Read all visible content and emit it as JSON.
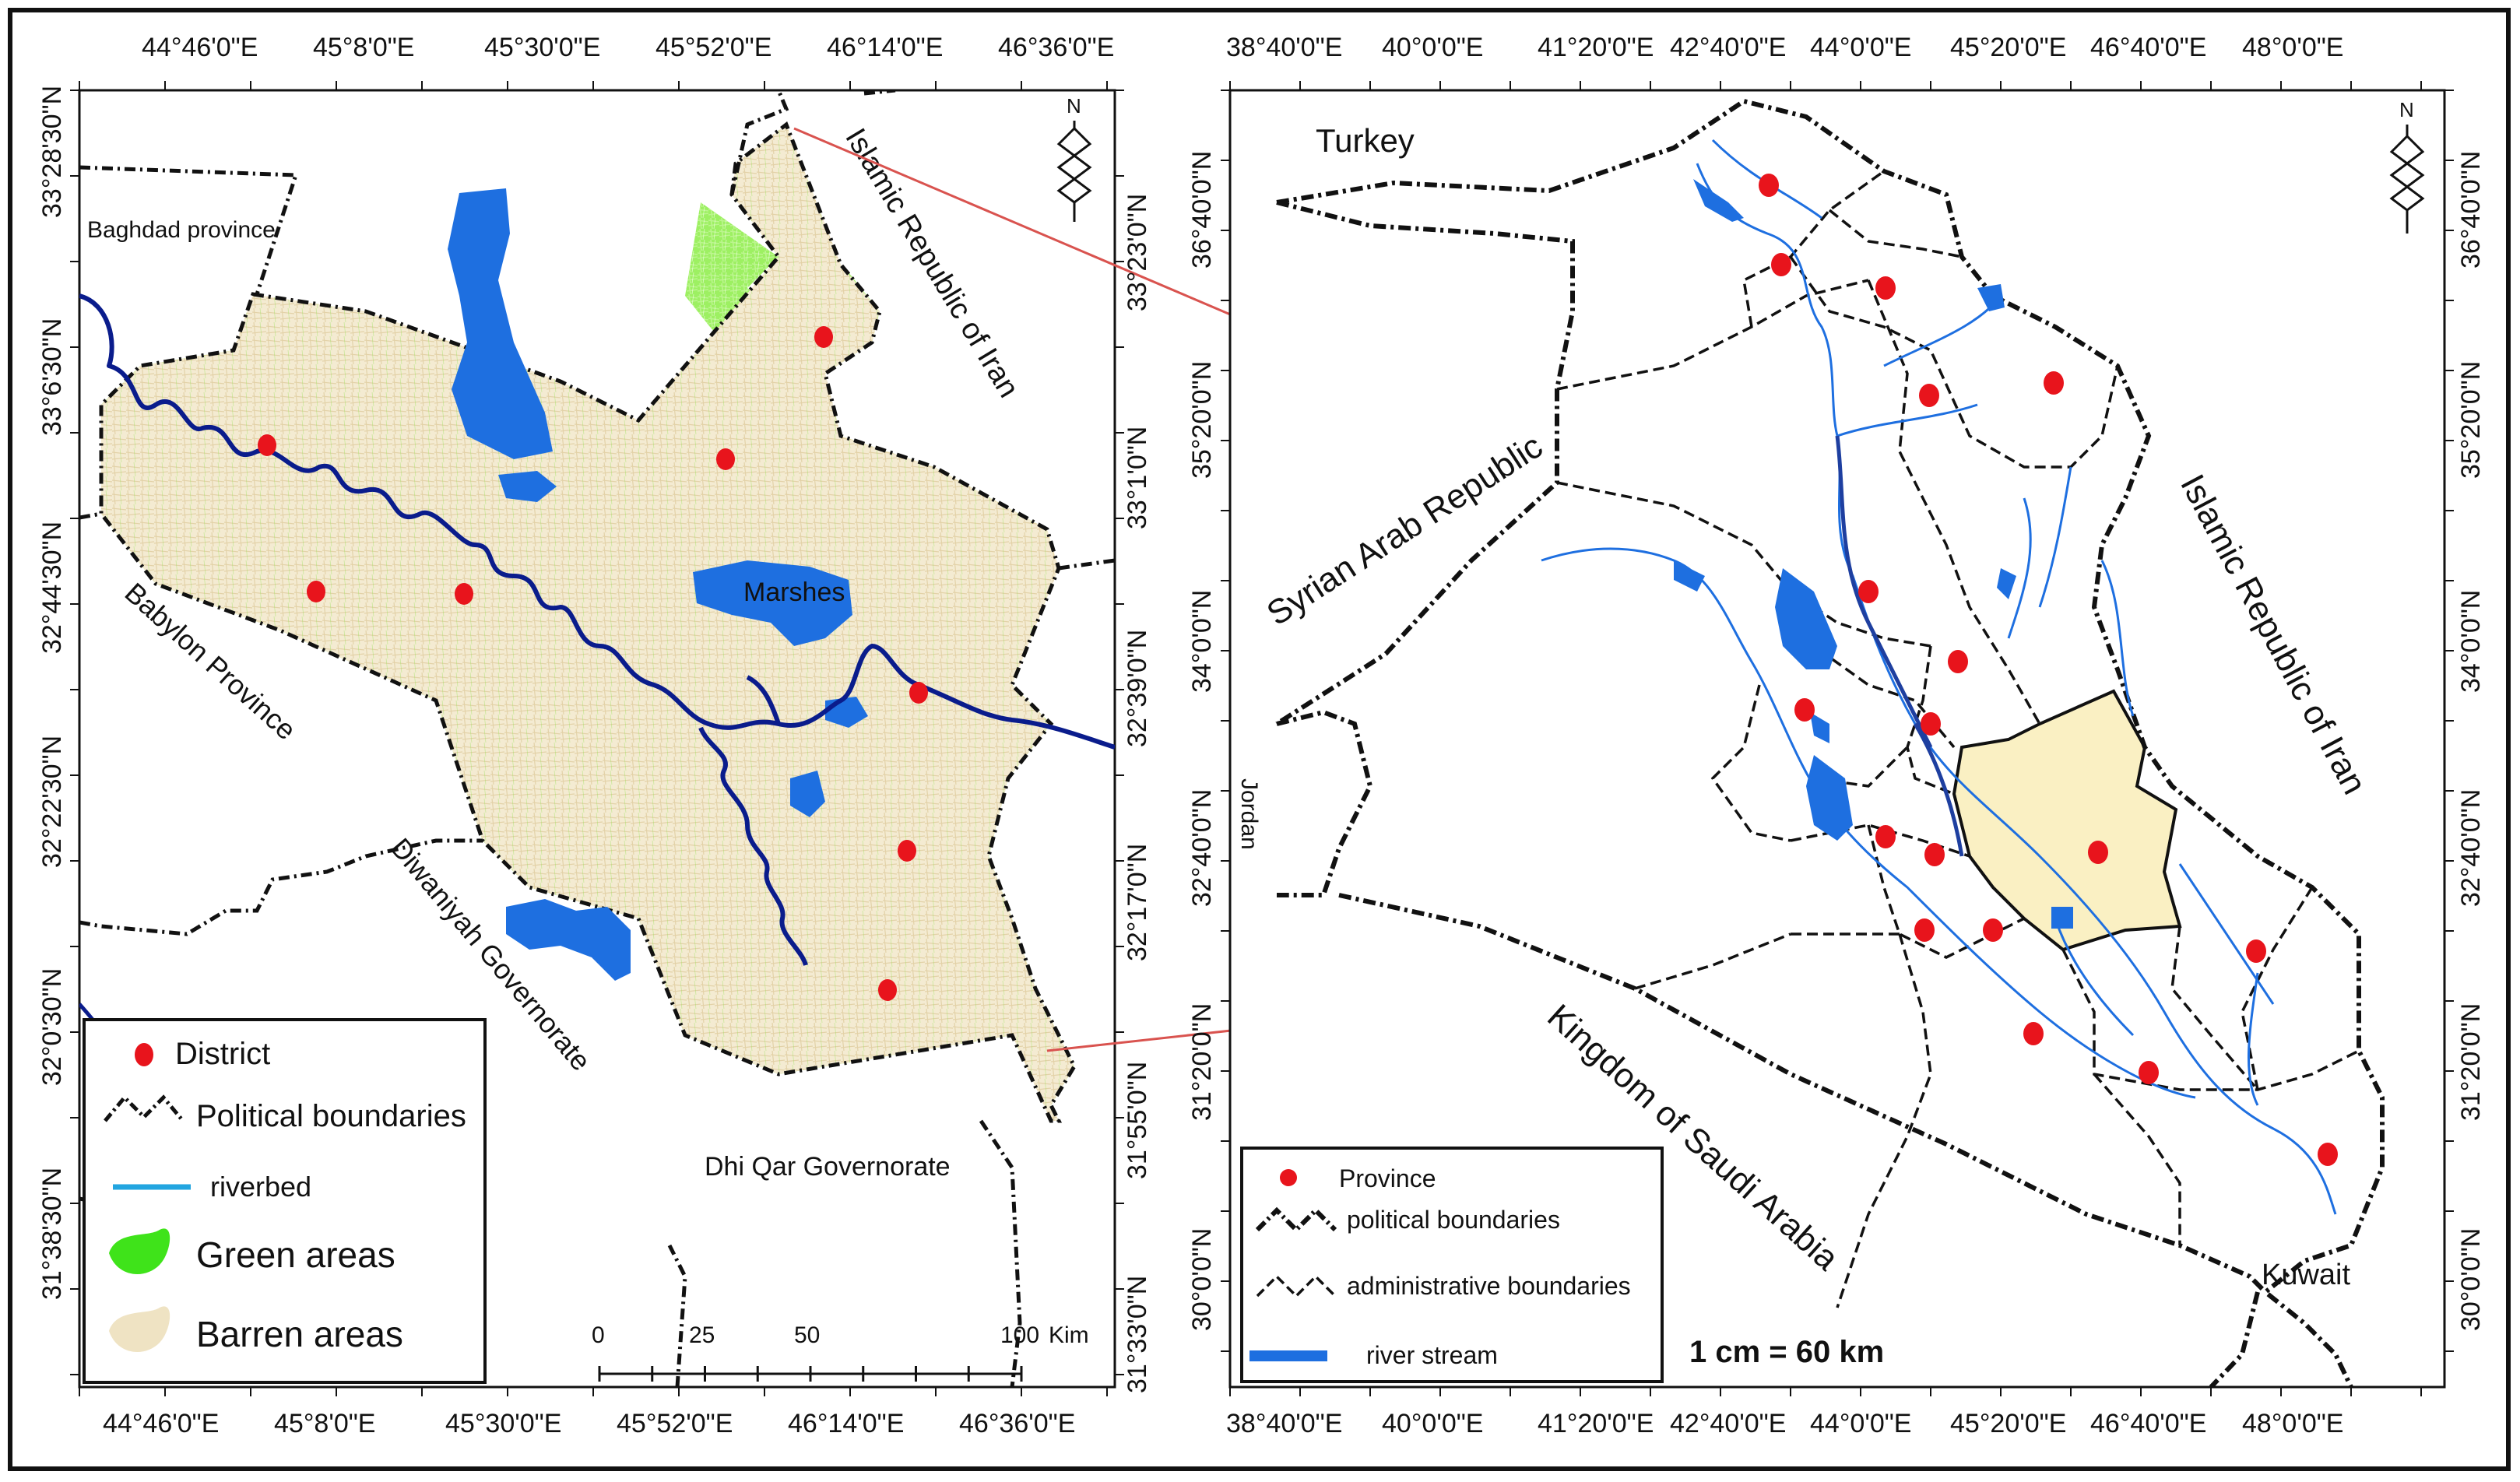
{
  "colors": {
    "green_areas": "#7CEB2E",
    "barren_areas": "#EFE3C3",
    "water": "#1E6FE0",
    "river_main": "#0A1C8C",
    "district_dot": "#E8141C",
    "study_area_fill": "#FAF0C3",
    "connector_line": "#D9534F",
    "boundary": "#111111"
  },
  "left_map": {
    "top_lon_labels": [
      "44°46'0\"E",
      "45°8'0\"E",
      "45°30'0\"E",
      "45°52'0\"E",
      "46°14'0\"E",
      "46°36'0\"E"
    ],
    "bottom_lon_labels": [
      "44°46'0\"E",
      "45°8'0\"E",
      "45°30'0\"E",
      "45°52'0\"E",
      "46°14'0\"E",
      "46°36'0\"E"
    ],
    "left_lat_labels": [
      "33°28'30\"N",
      "33°6'30\"N",
      "32°44'30\"N",
      "32°22'30\"N",
      "32°0'30\"N",
      "31°38'30\"N"
    ],
    "right_lat_labels": [
      "33°23'0\"N",
      "33°1'0\"N",
      "32°39'0\"N",
      "32°17'0\"N",
      "31°55'0\"N",
      "31°33'0\"N"
    ],
    "places": {
      "baghdad": "Baghdad province",
      "iran": "Islamic Republic of Iran",
      "babylon": "Babylon Province",
      "diwaniyah": "Diwaniyah Governorate",
      "dhiqar": "Dhi Qar Governorate",
      "marshes": "Marshes"
    },
    "north": "N",
    "scale": {
      "ticks": [
        "0",
        "25",
        "50",
        "100"
      ],
      "unit": "Kim"
    },
    "legend": {
      "district": "District",
      "political": "Political boundaries",
      "riverbed": "riverbed",
      "green": "Green areas",
      "barren": "Barren areas"
    }
  },
  "right_map": {
    "top_lon_labels": [
      "38°40'0\"E",
      "40°0'0\"E",
      "41°20'0\"E",
      "42°40'0\"E",
      "44°0'0\"E",
      "45°20'0\"E",
      "46°40'0\"E",
      "48°0'0\"E"
    ],
    "bottom_lon_labels": [
      "38°40'0\"E",
      "40°0'0\"E",
      "41°20'0\"E",
      "42°40'0\"E",
      "44°0'0\"E",
      "45°20'0\"E",
      "46°40'0\"E",
      "48°0'0\"E"
    ],
    "left_lat_labels": [
      "36°40'0\"N",
      "35°20'0\"N",
      "34°0'0\"N",
      "32°40'0\"N",
      "31°20'0\"N",
      "30°0'0\"N"
    ],
    "right_lat_labels": [
      "36°40'0\"N",
      "35°20'0\"N",
      "34°0'0\"N",
      "32°40'0\"N",
      "31°20'0\"N",
      "30°0'0\"N"
    ],
    "places": {
      "turkey": "Turkey",
      "syria": "Syrian Arab Republic",
      "iran": "Islamic Republic of Iran",
      "jordan": "Jordan",
      "saudi": "Kingdom of Saudi Arabia",
      "kuwait": "Kuwait"
    },
    "north": "N",
    "scale_text": "1 cm = 60 km",
    "legend": {
      "province": "Province",
      "political": "political boundaries",
      "administrative": "administrative boundaries",
      "river": "river stream"
    }
  }
}
